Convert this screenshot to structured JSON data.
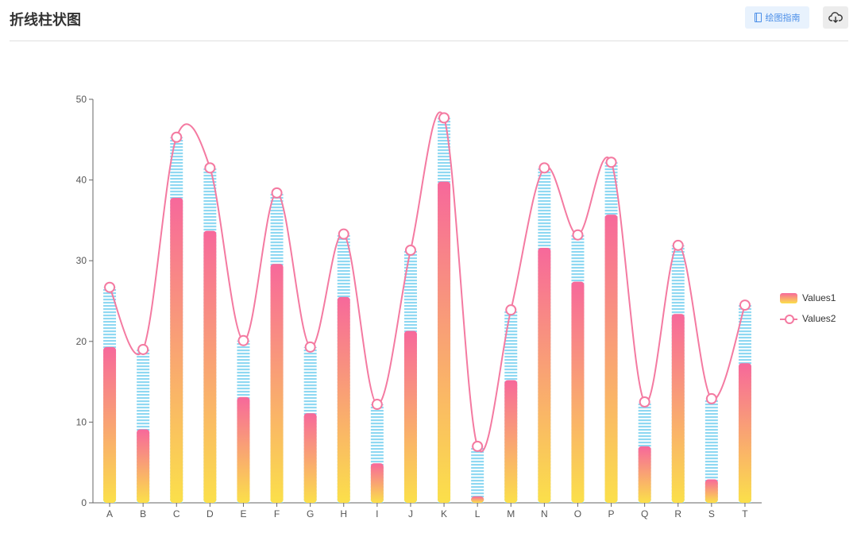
{
  "header": {
    "title": "折线柱状图",
    "guide_label": "绘图指南",
    "guide_icon": "book-icon",
    "download_icon": "cloud-download-icon"
  },
  "colors": {
    "bar_top": "#f7689b",
    "bar_bottom": "#fbe04a",
    "stripe": "#8fd8f2",
    "line": "#f47aa1",
    "axis": "#666666",
    "accent": "#4a8ee8"
  },
  "chart_data": {
    "type": "bar",
    "title": "",
    "xlabel": "",
    "ylabel": "",
    "ylim": [
      0,
      50
    ],
    "yticks": [
      0,
      10,
      20,
      30,
      40,
      50
    ],
    "grid": false,
    "legend_position": "right",
    "categories": [
      "A",
      "B",
      "C",
      "D",
      "E",
      "F",
      "G",
      "H",
      "I",
      "J",
      "K",
      "L",
      "M",
      "N",
      "O",
      "P",
      "Q",
      "R",
      "S",
      "T"
    ],
    "series": [
      {
        "name": "Values1",
        "type": "bar",
        "values": [
          19.3,
          9.1,
          37.8,
          33.7,
          13.1,
          29.6,
          11.1,
          25.5,
          4.9,
          21.3,
          39.8,
          0.8,
          15.2,
          31.6,
          27.4,
          35.7,
          7.0,
          23.4,
          2.9,
          17.3
        ]
      },
      {
        "name": "Values2",
        "type": "line",
        "values": [
          26.7,
          19.0,
          45.3,
          41.5,
          20.1,
          38.4,
          19.3,
          33.3,
          12.2,
          31.3,
          47.7,
          7.0,
          23.9,
          41.5,
          33.2,
          42.2,
          12.5,
          31.9,
          12.9,
          24.5
        ]
      }
    ]
  },
  "legend": {
    "items": [
      {
        "label": "Values1"
      },
      {
        "label": "Values2"
      }
    ]
  }
}
